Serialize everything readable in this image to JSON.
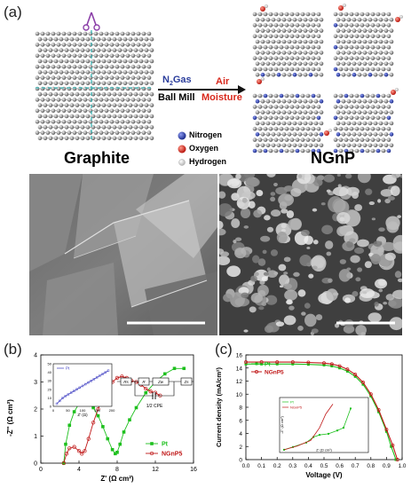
{
  "panels": {
    "a": "(a)",
    "b": "(b)",
    "c": "(c)"
  },
  "panel_a": {
    "graphite_label": "Graphite",
    "ngnp_label": "NGnP",
    "process_gas_prefix": "N",
    "process_gas_sub": "2",
    "process_gas_suffix": "Gas",
    "process_step1": "Ball Mill",
    "process_step2_line1": "Air",
    "process_step2_line2": "Moisture",
    "legend": [
      {
        "label": "Nitrogen",
        "color": "#2d3fa8"
      },
      {
        "label": "Oxygen",
        "color": "#e0241b"
      },
      {
        "label": "Hydrogen",
        "color": "#e6e6e6"
      }
    ]
  },
  "chart_data": [
    {
      "type": "line",
      "panel": "b",
      "xlabel": "Z' (Ω cm²)",
      "ylabel": "-Z'' (Ω cm²)",
      "xlim": [
        0,
        16
      ],
      "ylim": [
        0,
        4
      ],
      "xticks": [
        0,
        4,
        8,
        12,
        16
      ],
      "yticks": [
        0,
        1,
        2,
        3,
        4
      ],
      "series": [
        {
          "name": "Pt",
          "color": "#1ec01e",
          "x": [
            2.4,
            2.6,
            3.0,
            3.5,
            4.0,
            4.5,
            5.0,
            5.5,
            6.0,
            6.5,
            7.0,
            7.5,
            7.8,
            8.0,
            8.3,
            8.7,
            9.3,
            10.0,
            11.0,
            12.0,
            13.0,
            14.0,
            15.0
          ],
          "y": [
            0.0,
            0.7,
            1.4,
            1.9,
            2.2,
            2.3,
            2.25,
            2.05,
            1.75,
            1.35,
            0.9,
            0.5,
            0.35,
            0.4,
            0.7,
            1.15,
            1.6,
            2.05,
            2.6,
            3.0,
            3.3,
            3.5,
            3.5
          ]
        },
        {
          "name": "NGnP5",
          "color": "#c01818",
          "x": [
            2.4,
            2.7,
            3.0,
            3.5,
            4.0,
            4.3,
            4.6,
            5.0,
            5.5,
            6.0,
            6.5,
            7.0,
            7.5,
            8.0,
            8.5,
            9.0,
            9.5,
            10.0,
            10.5,
            11.0,
            11.5,
            12.0,
            12.5
          ],
          "y": [
            0.0,
            0.35,
            0.55,
            0.6,
            0.45,
            0.35,
            0.45,
            0.9,
            1.5,
            2.0,
            2.45,
            2.8,
            3.0,
            3.15,
            3.2,
            3.15,
            3.05,
            3.0,
            2.9,
            2.75,
            2.65,
            2.6,
            2.5
          ]
        }
      ],
      "inset": {
        "legend": "Pt",
        "xlabel": "Z' (Ω)",
        "xticks": [
          0,
          50,
          100,
          150,
          200
        ],
        "yticks": [
          0,
          10,
          20,
          30,
          40,
          50
        ]
      },
      "circuit": {
        "elements": [
          "Rs",
          "R",
          "Zw",
          "Zs"
        ],
        "cpe_label": "1/2 CPE"
      },
      "legend_placement": "right"
    },
    {
      "type": "line",
      "panel": "c",
      "xlabel": "Voltage (V)",
      "ylabel": "Current density (mA/cm²)",
      "xlim": [
        0,
        1.0
      ],
      "ylim": [
        0,
        16
      ],
      "xticks": [
        0.0,
        0.1,
        0.2,
        0.3,
        0.4,
        0.5,
        0.6,
        0.7,
        0.8,
        0.9,
        1.0
      ],
      "yticks": [
        0,
        2,
        4,
        6,
        8,
        10,
        12,
        14,
        16
      ],
      "series": [
        {
          "name": "Pt",
          "color": "#1ec01e",
          "x": [
            0.0,
            0.1,
            0.2,
            0.3,
            0.4,
            0.5,
            0.55,
            0.6,
            0.65,
            0.7,
            0.75,
            0.8,
            0.85,
            0.9,
            0.93,
            0.96
          ],
          "y": [
            14.6,
            14.6,
            14.6,
            14.6,
            14.55,
            14.45,
            14.3,
            14.0,
            13.5,
            12.7,
            11.5,
            9.7,
            7.3,
            4.3,
            2.0,
            0.0
          ]
        },
        {
          "name": "NGnP5",
          "color": "#c01818",
          "x": [
            0.0,
            0.1,
            0.2,
            0.3,
            0.4,
            0.5,
            0.55,
            0.6,
            0.65,
            0.7,
            0.75,
            0.8,
            0.85,
            0.9,
            0.94,
            0.97
          ],
          "y": [
            14.9,
            14.9,
            14.9,
            14.9,
            14.85,
            14.75,
            14.6,
            14.3,
            13.8,
            13.0,
            11.8,
            10.0,
            7.6,
            4.6,
            2.2,
            0.0
          ]
        }
      ],
      "inset": {
        "legend": [
          "Pt",
          "NGnP5"
        ],
        "xlabel": "Z' (Ω cm²)",
        "ylabel": "-Z'' (Ω cm²)"
      },
      "legend_placement": "top-left"
    }
  ]
}
